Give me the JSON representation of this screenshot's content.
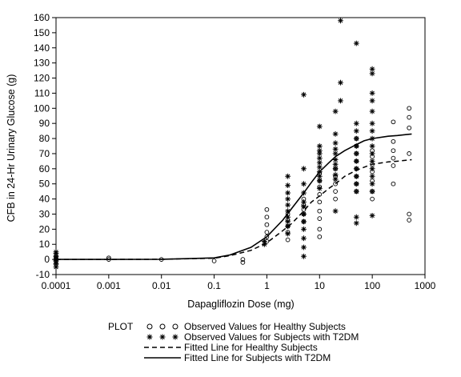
{
  "chart_data": {
    "type": "scatter",
    "xlabel": "Dapagliflozin Dose (mg)",
    "ylabel": "CFB in 24-Hr Urinary Glucose (g)",
    "x_scale": "log",
    "xlim": [
      0.0001,
      1000
    ],
    "ylim": [
      -10,
      160
    ],
    "x_ticks": [
      0.0001,
      0.001,
      0.01,
      0.1,
      1,
      10,
      100,
      1000
    ],
    "x_tick_labels": [
      "0.0001",
      "0.001",
      "0.01",
      "0.1",
      "1",
      "10",
      "100",
      "1000"
    ],
    "y_ticks": [
      -10,
      0,
      10,
      20,
      30,
      40,
      50,
      60,
      70,
      80,
      90,
      100,
      110,
      120,
      130,
      140,
      150,
      160
    ],
    "y_tick_labels": [
      "-10",
      "0",
      "10",
      "20",
      "30",
      "40",
      "50",
      "60",
      "70",
      "80",
      "90",
      "100",
      "110",
      "120",
      "130",
      "140",
      "150",
      "160"
    ],
    "grid": false,
    "legend": {
      "title": "PLOT",
      "placement": "bottom",
      "entries": [
        {
          "label": "Observed Values for Healthy Subjects",
          "symbol": "circle"
        },
        {
          "label": "Observed Values for Subjects with T2DM",
          "symbol": "star"
        },
        {
          "label": "Fitted Line for Healthy Subjects",
          "symbol": "dashed-line"
        },
        {
          "label": "Fitted Line for Subjects with T2DM",
          "symbol": "solid-line"
        }
      ]
    },
    "series": [
      {
        "name": "Observed Values for Healthy Subjects",
        "marker": "circle",
        "points": [
          [
            0.0001,
            2
          ],
          [
            0.0001,
            0
          ],
          [
            0.0001,
            -1
          ],
          [
            0.0001,
            -3
          ],
          [
            0.0001,
            1
          ],
          [
            0.001,
            0
          ],
          [
            0.001,
            1
          ],
          [
            0.01,
            0
          ],
          [
            0.1,
            -1
          ],
          [
            0.35,
            -2
          ],
          [
            0.35,
            0
          ],
          [
            1,
            12
          ],
          [
            1,
            15
          ],
          [
            1,
            18
          ],
          [
            1,
            23
          ],
          [
            1,
            28
          ],
          [
            1,
            33
          ],
          [
            2.5,
            13
          ],
          [
            2.5,
            18
          ],
          [
            2.5,
            22
          ],
          [
            2.5,
            26
          ],
          [
            2.5,
            30
          ],
          [
            5,
            25
          ],
          [
            5,
            30
          ],
          [
            5,
            33
          ],
          [
            5,
            36
          ],
          [
            5,
            40
          ],
          [
            10,
            15
          ],
          [
            10,
            20
          ],
          [
            10,
            27
          ],
          [
            10,
            32
          ],
          [
            10,
            38
          ],
          [
            10,
            43
          ],
          [
            10,
            48
          ],
          [
            10,
            52
          ],
          [
            10,
            57
          ],
          [
            20,
            40
          ],
          [
            20,
            45
          ],
          [
            20,
            50
          ],
          [
            20,
            55
          ],
          [
            20,
            60
          ],
          [
            50,
            45
          ],
          [
            50,
            50
          ],
          [
            50,
            55
          ],
          [
            50,
            60
          ],
          [
            50,
            65
          ],
          [
            50,
            70
          ],
          [
            50,
            75
          ],
          [
            50,
            80
          ],
          [
            100,
            40
          ],
          [
            100,
            45
          ],
          [
            100,
            52
          ],
          [
            100,
            58
          ],
          [
            100,
            63
          ],
          [
            100,
            68
          ],
          [
            100,
            72
          ],
          [
            250,
            50
          ],
          [
            250,
            62
          ],
          [
            250,
            67
          ],
          [
            250,
            72
          ],
          [
            250,
            78
          ],
          [
            250,
            91
          ],
          [
            500,
            26
          ],
          [
            500,
            30
          ],
          [
            500,
            70
          ],
          [
            500,
            87
          ],
          [
            500,
            94
          ],
          [
            500,
            100
          ]
        ]
      },
      {
        "name": "Observed Values for Subjects with T2DM",
        "marker": "star",
        "points": [
          [
            0.0001,
            -5
          ],
          [
            0.0001,
            -3
          ],
          [
            0.0001,
            -1
          ],
          [
            0.0001,
            0
          ],
          [
            0.0001,
            2
          ],
          [
            0.0001,
            4
          ],
          [
            0.0001,
            5
          ],
          [
            0.9,
            10
          ],
          [
            0.9,
            12
          ],
          [
            2.5,
            17
          ],
          [
            2.5,
            22
          ],
          [
            2.5,
            25
          ],
          [
            2.5,
            28
          ],
          [
            2.5,
            32
          ],
          [
            2.5,
            36
          ],
          [
            2.5,
            40
          ],
          [
            2.5,
            44
          ],
          [
            2.5,
            49
          ],
          [
            2.5,
            55
          ],
          [
            5,
            2
          ],
          [
            5,
            8
          ],
          [
            5,
            14
          ],
          [
            5,
            20
          ],
          [
            5,
            25
          ],
          [
            5,
            30
          ],
          [
            5,
            35
          ],
          [
            5,
            38
          ],
          [
            5,
            44
          ],
          [
            5,
            50
          ],
          [
            5,
            60
          ],
          [
            5,
            109
          ],
          [
            10,
            47
          ],
          [
            10,
            52
          ],
          [
            10,
            55
          ],
          [
            10,
            58
          ],
          [
            10,
            61
          ],
          [
            10,
            64
          ],
          [
            10,
            67
          ],
          [
            10,
            70
          ],
          [
            10,
            72
          ],
          [
            10,
            75
          ],
          [
            10,
            88
          ],
          [
            20,
            32
          ],
          [
            20,
            53
          ],
          [
            20,
            56
          ],
          [
            20,
            60
          ],
          [
            20,
            63
          ],
          [
            20,
            66
          ],
          [
            20,
            70
          ],
          [
            20,
            73
          ],
          [
            20,
            77
          ],
          [
            20,
            83
          ],
          [
            20,
            98
          ],
          [
            25,
            105
          ],
          [
            25,
            117
          ],
          [
            25,
            158
          ],
          [
            50,
            24
          ],
          [
            50,
            28
          ],
          [
            50,
            45
          ],
          [
            50,
            50
          ],
          [
            50,
            55
          ],
          [
            50,
            60
          ],
          [
            50,
            65
          ],
          [
            50,
            70
          ],
          [
            50,
            75
          ],
          [
            50,
            80
          ],
          [
            50,
            85
          ],
          [
            50,
            90
          ],
          [
            50,
            143
          ],
          [
            100,
            29
          ],
          [
            100,
            45
          ],
          [
            100,
            50
          ],
          [
            100,
            55
          ],
          [
            100,
            60
          ],
          [
            100,
            65
          ],
          [
            100,
            70
          ],
          [
            100,
            75
          ],
          [
            100,
            80
          ],
          [
            100,
            85
          ],
          [
            100,
            90
          ],
          [
            100,
            98
          ],
          [
            100,
            105
          ],
          [
            100,
            110
          ],
          [
            100,
            123
          ],
          [
            100,
            126
          ]
        ]
      },
      {
        "name": "Fitted Line for Healthy Subjects",
        "line": "dashed",
        "points": [
          [
            0.0001,
            0
          ],
          [
            0.001,
            0
          ],
          [
            0.01,
            0.1
          ],
          [
            0.1,
            0.8
          ],
          [
            0.2,
            2.5
          ],
          [
            0.5,
            6
          ],
          [
            1,
            11
          ],
          [
            2,
            19
          ],
          [
            3,
            24
          ],
          [
            5,
            32
          ],
          [
            7,
            38
          ],
          [
            10,
            42
          ],
          [
            15,
            47
          ],
          [
            20,
            50
          ],
          [
            30,
            55
          ],
          [
            50,
            59
          ],
          [
            70,
            61
          ],
          [
            100,
            63
          ],
          [
            200,
            64.5
          ],
          [
            300,
            65
          ],
          [
            560,
            66
          ]
        ]
      },
      {
        "name": "Fitted Line for Subjects with T2DM",
        "line": "solid",
        "points": [
          [
            0.0001,
            0
          ],
          [
            0.001,
            0
          ],
          [
            0.01,
            0.1
          ],
          [
            0.1,
            1
          ],
          [
            0.2,
            3
          ],
          [
            0.5,
            8
          ],
          [
            1,
            15
          ],
          [
            2,
            26
          ],
          [
            3,
            34
          ],
          [
            5,
            44
          ],
          [
            7,
            51
          ],
          [
            10,
            58
          ],
          [
            15,
            64
          ],
          [
            20,
            68
          ],
          [
            30,
            72
          ],
          [
            50,
            76
          ],
          [
            70,
            78.5
          ],
          [
            100,
            80
          ],
          [
            200,
            81.5
          ],
          [
            300,
            82
          ],
          [
            560,
            83
          ]
        ]
      }
    ]
  }
}
